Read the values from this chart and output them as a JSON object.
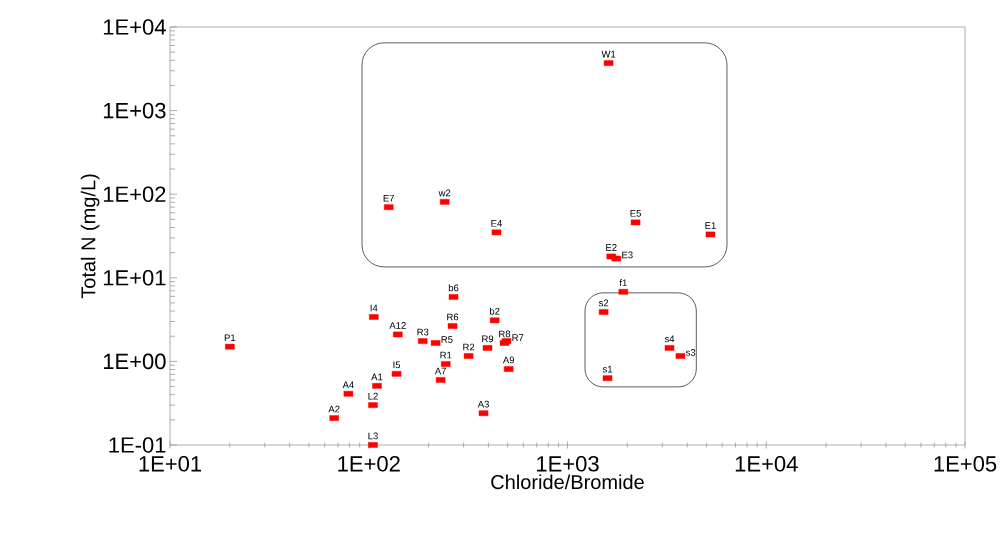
{
  "chart_data": {
    "type": "scatter",
    "xlabel": "Chloride/Bromide",
    "ylabel": "Total N (mg/L)",
    "log": "xy",
    "grid": false,
    "marker": "square",
    "xlim": [
      10,
      100000
    ],
    "ylim": [
      0.1,
      10000
    ],
    "xticks": [
      {
        "value": 10,
        "label": "1E+01"
      },
      {
        "value": 100,
        "label": "1E+02"
      },
      {
        "value": 1000,
        "label": "1E+03"
      },
      {
        "value": 10000,
        "label": "1E+04"
      },
      {
        "value": 100000,
        "label": "1E+05"
      }
    ],
    "yticks": [
      {
        "value": 0.1,
        "label": "1E-01"
      },
      {
        "value": 1,
        "label": "1E+00"
      },
      {
        "value": 10,
        "label": "1E+01"
      },
      {
        "value": 100,
        "label": "1E+02"
      },
      {
        "value": 1000,
        "label": "1E+03"
      },
      {
        "value": 10000,
        "label": "1E+04"
      }
    ],
    "series": [
      {
        "name": "P1",
        "color": "#ff0000",
        "x": [
          20
        ],
        "values": [
          1.5
        ]
      },
      {
        "name": "I4",
        "color": "#ff0000",
        "x": [
          106
        ],
        "values": [
          3.4
        ]
      },
      {
        "name": "A12",
        "color": "#ff0000",
        "x": [
          140
        ],
        "values": [
          2.1
        ]
      },
      {
        "name": "R3",
        "color": "#ff0000",
        "x": [
          187
        ],
        "values": [
          1.75
        ]
      },
      {
        "name": "R5",
        "color": "#ff0000",
        "x": [
          217
        ],
        "values": [
          1.66
        ]
      },
      {
        "name": "b6",
        "color": "#ff0000",
        "x": [
          267
        ],
        "values": [
          5.9
        ]
      },
      {
        "name": "R6",
        "color": "#ff0000",
        "x": [
          264
        ],
        "values": [
          2.65
        ]
      },
      {
        "name": "b2",
        "color": "#ff0000",
        "x": [
          430
        ],
        "values": [
          3.1
        ]
      },
      {
        "name": "R9",
        "color": "#ff0000",
        "x": [
          396
        ],
        "values": [
          1.45
        ]
      },
      {
        "name": "R8",
        "color": "#ff0000",
        "x": [
          482
        ],
        "values": [
          1.66
        ]
      },
      {
        "name": "R7",
        "color": "#ff0000",
        "x": [
          493
        ],
        "values": [
          1.75
        ]
      },
      {
        "name": "R2",
        "color": "#ff0000",
        "x": [
          318
        ],
        "values": [
          1.16
        ]
      },
      {
        "name": "R1",
        "color": "#ff0000",
        "x": [
          244
        ],
        "values": [
          0.93
        ]
      },
      {
        "name": "A7",
        "color": "#ff0000",
        "x": [
          230
        ],
        "values": [
          0.6
        ]
      },
      {
        "name": "A9",
        "color": "#ff0000",
        "x": [
          506
        ],
        "values": [
          0.81
        ]
      },
      {
        "name": "I5",
        "color": "#ff0000",
        "x": [
          138
        ],
        "values": [
          0.71
        ]
      },
      {
        "name": "A1",
        "color": "#ff0000",
        "x": [
          110
        ],
        "values": [
          0.51
        ]
      },
      {
        "name": "A4",
        "color": "#ff0000",
        "x": [
          79
        ],
        "values": [
          0.41
        ]
      },
      {
        "name": "L2",
        "color": "#ff0000",
        "x": [
          105
        ],
        "values": [
          0.3
        ]
      },
      {
        "name": "A2",
        "color": "#ff0000",
        "x": [
          67
        ],
        "values": [
          0.21
        ]
      },
      {
        "name": "A3",
        "color": "#ff0000",
        "x": [
          378
        ],
        "values": [
          0.24
        ]
      },
      {
        "name": "L3",
        "color": "#ff0000",
        "x": [
          105
        ],
        "values": [
          0.1
        ]
      },
      {
        "name": "E7",
        "color": "#ff0000",
        "x": [
          126
        ],
        "values": [
          70
        ]
      },
      {
        "name": "w2",
        "color": "#ff0000",
        "x": [
          241
        ],
        "values": [
          81
        ]
      },
      {
        "name": "E4",
        "color": "#ff0000",
        "x": [
          439
        ],
        "values": [
          35
        ]
      },
      {
        "name": "E5",
        "color": "#ff0000",
        "x": [
          2200
        ],
        "values": [
          46
        ]
      },
      {
        "name": "E1",
        "color": "#ff0000",
        "x": [
          5240
        ],
        "values": [
          33
        ]
      },
      {
        "name": "E2",
        "color": "#ff0000",
        "x": [
          1660
        ],
        "values": [
          18
        ]
      },
      {
        "name": "E3",
        "color": "#ff0000",
        "x": [
          1760
        ],
        "values": [
          17
        ]
      },
      {
        "name": "W1",
        "color": "#ff0000",
        "x": [
          1610
        ],
        "values": [
          3700
        ]
      },
      {
        "name": "f1",
        "color": "#ff0000",
        "x": [
          1910
        ],
        "values": [
          6.8
        ]
      },
      {
        "name": "s2",
        "color": "#ff0000",
        "x": [
          1520
        ],
        "values": [
          3.9
        ]
      },
      {
        "name": "s4",
        "color": "#ff0000",
        "x": [
          3260
        ],
        "values": [
          1.45
        ]
      },
      {
        "name": "s3",
        "color": "#ff0000",
        "x": [
          3700
        ],
        "values": [
          1.16
        ]
      },
      {
        "name": "s1",
        "color": "#ff0000",
        "x": [
          1590
        ],
        "values": [
          0.63
        ]
      }
    ]
  }
}
